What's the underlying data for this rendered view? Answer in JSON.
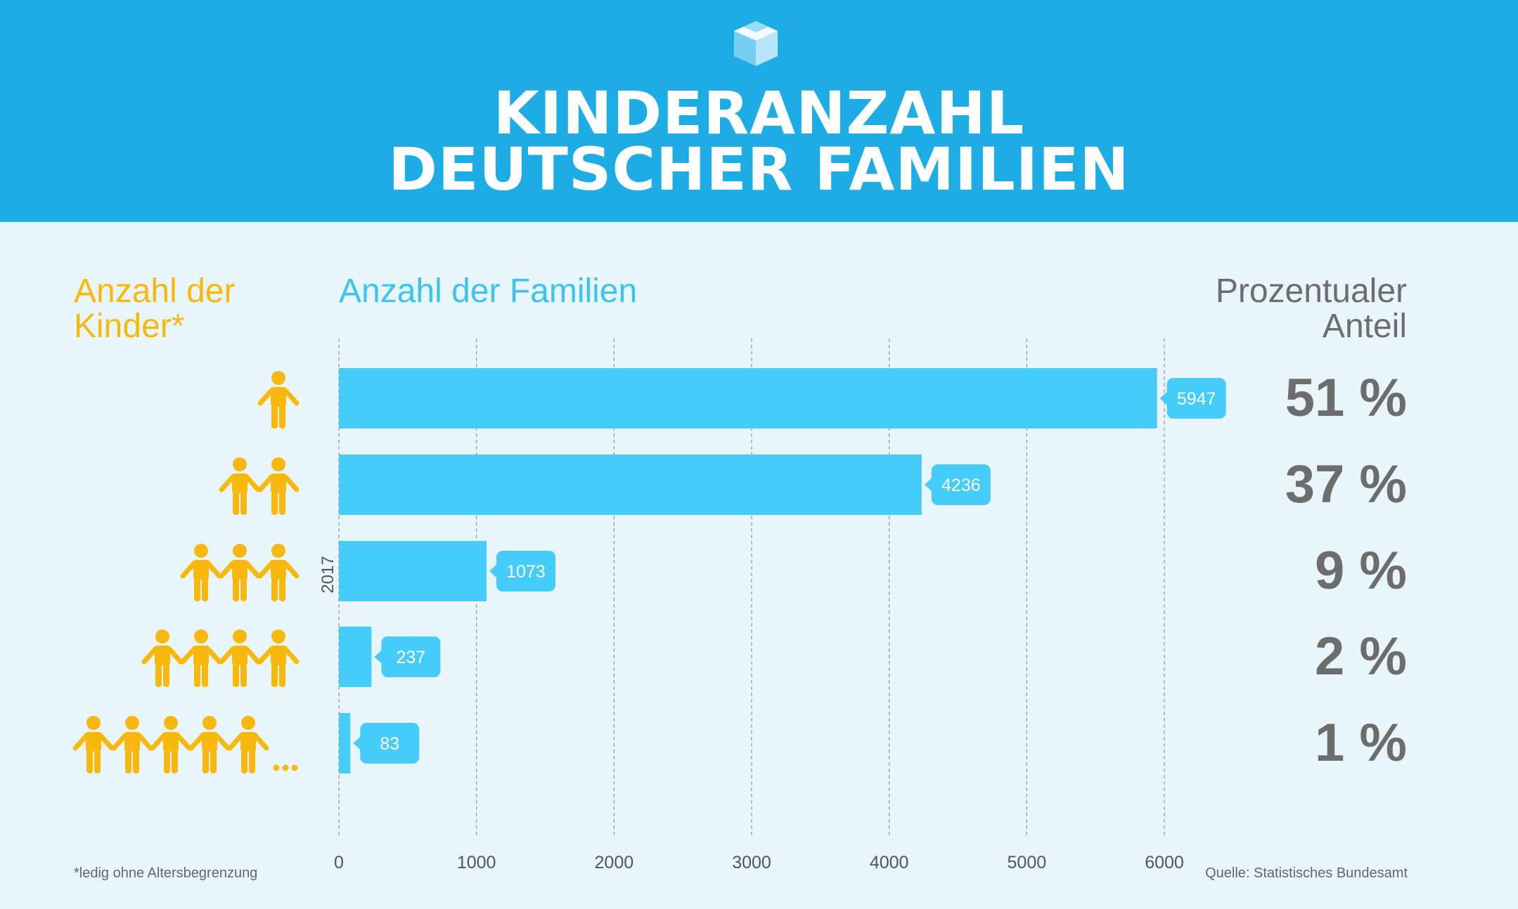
{
  "header": {
    "title_line1": "KINDERANZAHL",
    "title_line2": "DEUTSCHER FAMILIEN",
    "logo_icon": "cube-logo-icon"
  },
  "columns": {
    "kids_heading": "Anzahl der Kinder*",
    "families_heading": "Anzahl der Familien",
    "percent_heading": "Prozentualer Anteil"
  },
  "chart_data": {
    "type": "bar",
    "orientation": "horizontal",
    "title": "KINDERANZAHL DEUTSCHER FAMILIEN",
    "xlabel": "Anzahl der Familien",
    "ylabel": "Anzahl der Kinder*",
    "categories": [
      "1",
      "2",
      "3",
      "4",
      "5+"
    ],
    "values": [
      5947,
      4236,
      1073,
      237,
      83
    ],
    "bar_labels": [
      "5947",
      "4236",
      "1073",
      "237",
      "83"
    ],
    "percentages": [
      "51 %",
      "37 %",
      "9 %",
      "2 %",
      "1 %"
    ],
    "children_icons": [
      1,
      2,
      3,
      4,
      5
    ],
    "xlim": [
      0,
      6000
    ],
    "xticks": [
      "0",
      "1000",
      "2000",
      "3000",
      "4000",
      "5000",
      "6000"
    ],
    "year_label": "2017",
    "grid": true
  },
  "colors": {
    "header_bg": "#1eace4",
    "background": "#e8f5fa",
    "bar": "#45ccfb",
    "label_bubble": "#45ccfb",
    "kids": "#f9b80d",
    "percent_text": "#6d6d6d"
  },
  "footer": {
    "footnote": "*ledig ohne Altersbegrenzung",
    "source": "Quelle: Statistisches Bundesamt"
  }
}
